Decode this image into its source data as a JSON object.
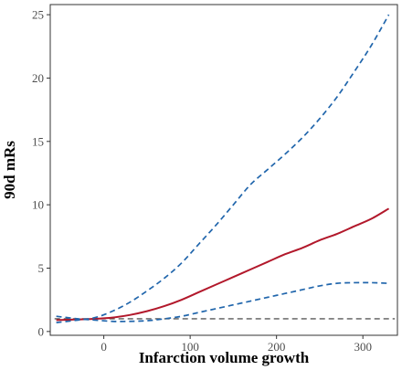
{
  "chart_data": {
    "type": "line",
    "title": "",
    "xlabel": "Infarction volume growth",
    "ylabel": "90d mRs",
    "xlim": [
      -62,
      340
    ],
    "ylim": [
      -0.3,
      25.8
    ],
    "xticks": [
      0,
      100,
      200,
      300
    ],
    "yticks": [
      0,
      5,
      10,
      15,
      20,
      25
    ],
    "grid": false,
    "legend": "none",
    "reference_line": {
      "y": 1,
      "style": "dashed",
      "color": "#595959"
    },
    "series": [
      {
        "role": "estimate",
        "style": "solid",
        "color": "#b2182b",
        "x": [
          -55,
          -30,
          -10,
          10,
          30,
          50,
          70,
          90,
          110,
          130,
          150,
          170,
          190,
          210,
          230,
          250,
          270,
          290,
          310,
          330
        ],
        "y": [
          0.9,
          0.95,
          1.0,
          1.1,
          1.3,
          1.6,
          2.0,
          2.5,
          3.1,
          3.7,
          4.3,
          4.9,
          5.5,
          6.1,
          6.6,
          7.2,
          7.7,
          8.3,
          8.9,
          9.7
        ]
      },
      {
        "role": "upper_ci",
        "style": "dashed",
        "color": "#2166ac",
        "x": [
          -55,
          -30,
          -10,
          10,
          30,
          50,
          70,
          90,
          110,
          130,
          150,
          170,
          190,
          210,
          230,
          250,
          270,
          290,
          310,
          330
        ],
        "y": [
          0.7,
          0.9,
          1.1,
          1.6,
          2.3,
          3.2,
          4.2,
          5.4,
          6.9,
          8.4,
          10.0,
          11.6,
          12.8,
          14.0,
          15.3,
          16.8,
          18.5,
          20.5,
          22.6,
          25.0
        ]
      },
      {
        "role": "lower_ci",
        "style": "dashed",
        "color": "#2166ac",
        "x": [
          -55,
          -30,
          -10,
          10,
          30,
          50,
          70,
          90,
          110,
          130,
          150,
          170,
          190,
          210,
          230,
          250,
          270,
          290,
          310,
          330
        ],
        "y": [
          1.2,
          1.0,
          0.9,
          0.8,
          0.8,
          0.85,
          1.0,
          1.2,
          1.5,
          1.8,
          2.1,
          2.4,
          2.7,
          3.0,
          3.3,
          3.6,
          3.8,
          3.85,
          3.85,
          3.8
        ]
      }
    ]
  }
}
